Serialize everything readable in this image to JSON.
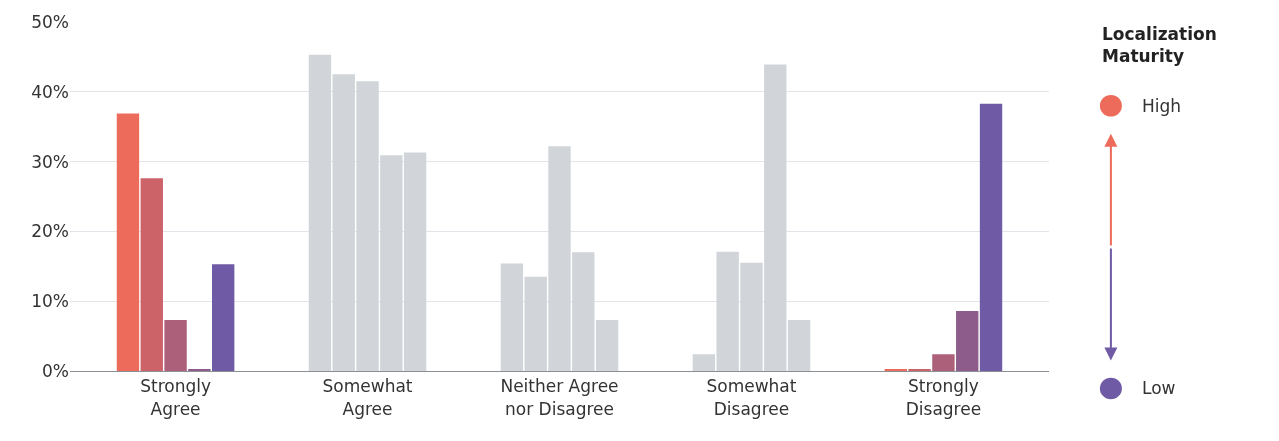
{
  "chart_data": {
    "type": "bar",
    "categories": [
      "Strongly\nAgree",
      "Somewhat\nAgree",
      "Neither Agree\nnor Disagree",
      "Somewhat\nDisagree",
      "Strongly\nDisagree"
    ],
    "series": [
      {
        "name": "High",
        "color": "#ec6b5a",
        "colors": [
          "#ec6b5a",
          "#d1d4d8",
          "#d1d4d8",
          "#d1d4d8",
          "#ec6b5a"
        ],
        "values": [
          36.9,
          45.3,
          15.4,
          2.4,
          0.2
        ]
      },
      {
        "colors": [
          "#cc6369",
          "#d1d4d8",
          "#d1d4d8",
          "#d1d4d8",
          "#cc6369"
        ],
        "values": [
          27.6,
          42.5,
          13.5,
          17.1,
          0.2
        ]
      },
      {
        "colors": [
          "#ad607a",
          "#d1d4d8",
          "#d1d4d8",
          "#d1d4d8",
          "#ad607a"
        ],
        "values": [
          7.3,
          41.5,
          32.2,
          15.5,
          2.4
        ]
      },
      {
        "colors": [
          "#8e5c8b",
          "#d1d4d8",
          "#d1d4d8",
          "#d1d4d8",
          "#8e5c8b"
        ],
        "values": [
          0.2,
          30.9,
          17.0,
          43.9,
          8.6
        ]
      },
      {
        "name": "Low",
        "color": "#6f5aa5",
        "colors": [
          "#6f5aa5",
          "#d1d4d8",
          "#d1d4d8",
          "#d1d4d8",
          "#6f5aa5"
        ],
        "values": [
          15.3,
          31.3,
          7.3,
          7.3,
          38.3
        ]
      }
    ],
    "legend_title": "Localization Maturity",
    "ylim": [
      0,
      50
    ],
    "yticks": [
      {
        "value": 0,
        "label": "0%"
      },
      {
        "value": 10,
        "label": "10%"
      },
      {
        "value": 20,
        "label": "20%"
      },
      {
        "value": 30,
        "label": "30%"
      },
      {
        "value": 40,
        "label": "40%"
      },
      {
        "value": 50,
        "label": "50%"
      }
    ],
    "grid": "y",
    "legend": "right"
  }
}
